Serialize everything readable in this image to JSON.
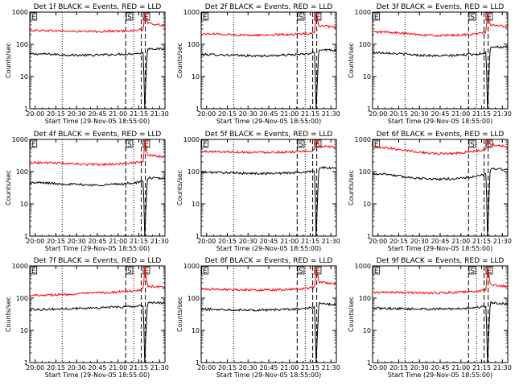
{
  "chart_data": [
    {
      "type": "line",
      "title": "Det 1f BLACK = Events, RED = LLD",
      "xlabel": "Start Time (29-Nov-05 18:55:00)",
      "ylabel": "Counts/sec",
      "x_ticks": [
        "20:00",
        "20:15",
        "20:30",
        "20:45",
        "21:00",
        "21:15",
        "21:30"
      ],
      "y_ticks": [
        "1",
        "10",
        "100",
        "1000"
      ],
      "y_scale": "log",
      "ylim": [
        1,
        1000
      ],
      "markers": [
        "E",
        "S",
        "E"
      ],
      "series": [
        {
          "color": "#000000",
          "values": [
            50,
            50,
            48,
            46,
            46,
            48,
            50,
            52,
            54,
            1,
            75,
            70
          ]
        },
        {
          "color": "#ff0000",
          "values": [
            270,
            270,
            260,
            250,
            250,
            255,
            260,
            270,
            290,
            1000,
            450,
            380
          ]
        }
      ]
    },
    {
      "type": "line",
      "title": "Det 2f BLACK = Events, RED = LLD",
      "xlabel": "Start Time (29-Nov-05 18:55:00)",
      "ylabel": "Counts/sec",
      "x_ticks": [
        "20:00",
        "20:15",
        "20:30",
        "20:45",
        "21:00",
        "21:15",
        "21:30"
      ],
      "y_ticks": [
        "1",
        "10",
        "100",
        "1000"
      ],
      "y_scale": "log",
      "ylim": [
        1,
        1000
      ],
      "markers": [
        "E",
        "S",
        "E"
      ],
      "series": [
        {
          "color": "#000000",
          "values": [
            48,
            48,
            46,
            44,
            44,
            46,
            48,
            50,
            55,
            1,
            70,
            65
          ]
        },
        {
          "color": "#ff0000",
          "values": [
            210,
            210,
            200,
            190,
            195,
            200,
            205,
            215,
            240,
            1000,
            380,
            330
          ]
        }
      ]
    },
    {
      "type": "line",
      "title": "Det 3f BLACK = Events, RED = LLD",
      "xlabel": "Start Time (29-Nov-05 18:55:00)",
      "ylabel": "Counts/sec",
      "x_ticks": [
        "20:00",
        "20:15",
        "20:30",
        "20:45",
        "21:00",
        "21:15",
        "21:30"
      ],
      "y_ticks": [
        "1",
        "10",
        "100",
        "1000"
      ],
      "y_scale": "log",
      "ylim": [
        1,
        1000
      ],
      "markers": [
        "E",
        "S",
        "E"
      ],
      "series": [
        {
          "color": "#000000",
          "values": [
            55,
            55,
            50,
            46,
            44,
            45,
            48,
            50,
            55,
            1,
            85,
            80
          ]
        },
        {
          "color": "#ff0000",
          "values": [
            240,
            240,
            220,
            200,
            185,
            190,
            200,
            215,
            240,
            1000,
            400,
            350
          ]
        }
      ]
    },
    {
      "type": "line",
      "title": "Det 4f BLACK = Events, RED = LLD",
      "xlabel": "Start Time (29-Nov-05 18:55:00)",
      "ylabel": "Counts/sec",
      "x_ticks": [
        "20:00",
        "20:15",
        "20:30",
        "20:45",
        "21:00",
        "21:15",
        "21:30"
      ],
      "y_ticks": [
        "1",
        "10",
        "100",
        "1000"
      ],
      "y_scale": "log",
      "ylim": [
        1,
        1000
      ],
      "markers": [
        "E",
        "S",
        "E"
      ],
      "series": [
        {
          "color": "#000000",
          "values": [
            45,
            45,
            42,
            40,
            38,
            40,
            42,
            45,
            50,
            1,
            65,
            60
          ]
        },
        {
          "color": "#ff0000",
          "values": [
            190,
            190,
            185,
            170,
            165,
            170,
            180,
            190,
            210,
            1000,
            330,
            290
          ]
        }
      ]
    },
    {
      "type": "line",
      "title": "Det 5f BLACK = Events, RED = LLD",
      "xlabel": "Start Time (29-Nov-05 18:55:00)",
      "ylabel": "Counts/sec",
      "x_ticks": [
        "20:00",
        "20:15",
        "20:30",
        "20:45",
        "21:00",
        "21:15",
        "21:30"
      ],
      "y_ticks": [
        "1",
        "10",
        "100",
        "1000"
      ],
      "y_scale": "log",
      "ylim": [
        1,
        1000
      ],
      "markers": [
        "E",
        "S",
        "E"
      ],
      "series": [
        {
          "color": "#000000",
          "values": [
            95,
            95,
            92,
            88,
            88,
            90,
            93,
            97,
            110,
            1,
            135,
            125
          ]
        },
        {
          "color": "#ff0000",
          "values": [
            420,
            420,
            410,
            400,
            400,
            405,
            410,
            420,
            460,
            1000,
            650,
            560
          ]
        }
      ]
    },
    {
      "type": "line",
      "title": "Det 6f BLACK = Events, RED = LLD",
      "xlabel": "Start Time (29-Nov-05 18:55:00)",
      "ylabel": "Counts/sec",
      "x_ticks": [
        "20:00",
        "20:15",
        "20:30",
        "20:45",
        "21:00",
        "21:15",
        "21:30"
      ],
      "y_ticks": [
        "1",
        "10",
        "100",
        "1000"
      ],
      "y_scale": "log",
      "ylim": [
        1,
        1000
      ],
      "markers": [
        "E",
        "S",
        "E"
      ],
      "series": [
        {
          "color": "#000000",
          "values": [
            85,
            85,
            70,
            62,
            58,
            60,
            65,
            72,
            85,
            1,
            125,
            115
          ]
        },
        {
          "color": "#ff0000",
          "values": [
            550,
            550,
            480,
            400,
            360,
            370,
            400,
            440,
            500,
            1000,
            700,
            600
          ]
        }
      ]
    },
    {
      "type": "line",
      "title": "Det 7f BLACK = Events, RED = LLD",
      "xlabel": "Start Time (29-Nov-05 18:55:00)",
      "ylabel": "Counts/sec",
      "x_ticks": [
        "20:00",
        "20:15",
        "20:30",
        "20:45",
        "21:00",
        "21:15",
        "21:30"
      ],
      "y_ticks": [
        "1",
        "10",
        "100",
        "1000"
      ],
      "y_scale": "log",
      "ylim": [
        1,
        1000
      ],
      "markers": [
        "E",
        "S",
        "E"
      ],
      "series": [
        {
          "color": "#000000",
          "values": [
            45,
            45,
            46,
            48,
            50,
            52,
            54,
            56,
            60,
            1,
            75,
            70
          ]
        },
        {
          "color": "#ff0000",
          "values": [
            125,
            125,
            128,
            135,
            145,
            150,
            160,
            170,
            190,
            1000,
            240,
            210
          ]
        }
      ]
    },
    {
      "type": "line",
      "title": "Det 8f BLACK = Events, RED = LLD",
      "xlabel": "Start Time (29-Nov-05 18:55:00)",
      "ylabel": "Counts/sec",
      "x_ticks": [
        "20:00",
        "20:15",
        "20:30",
        "20:45",
        "21:00",
        "21:15",
        "21:30"
      ],
      "y_ticks": [
        "1",
        "10",
        "100",
        "1000"
      ],
      "y_scale": "log",
      "ylim": [
        1,
        1000
      ],
      "markers": [
        "E",
        "S",
        "E"
      ],
      "series": [
        {
          "color": "#000000",
          "values": [
            45,
            45,
            44,
            43,
            43,
            44,
            46,
            48,
            52,
            1,
            68,
            62
          ]
        },
        {
          "color": "#ff0000",
          "values": [
            190,
            190,
            185,
            180,
            180,
            185,
            190,
            200,
            220,
            1000,
            320,
            270
          ]
        }
      ]
    },
    {
      "type": "line",
      "title": "Det 9f BLACK = Events, RED = LLD",
      "xlabel": "Start Time (29-Nov-05 18:55:00)",
      "ylabel": "Counts/sec",
      "x_ticks": [
        "20:00",
        "20:15",
        "20:30",
        "20:45",
        "21:00",
        "21:15",
        "21:30"
      ],
      "y_ticks": [
        "1",
        "10",
        "100",
        "1000"
      ],
      "y_scale": "log",
      "ylim": [
        1,
        1000
      ],
      "markers": [
        "E",
        "S",
        "E"
      ],
      "series": [
        {
          "color": "#000000",
          "values": [
            48,
            48,
            47,
            46,
            46,
            47,
            49,
            52,
            56,
            1,
            72,
            66
          ]
        },
        {
          "color": "#ff0000",
          "values": [
            150,
            150,
            148,
            145,
            145,
            150,
            155,
            165,
            185,
            1000,
            260,
            230
          ]
        }
      ]
    }
  ]
}
